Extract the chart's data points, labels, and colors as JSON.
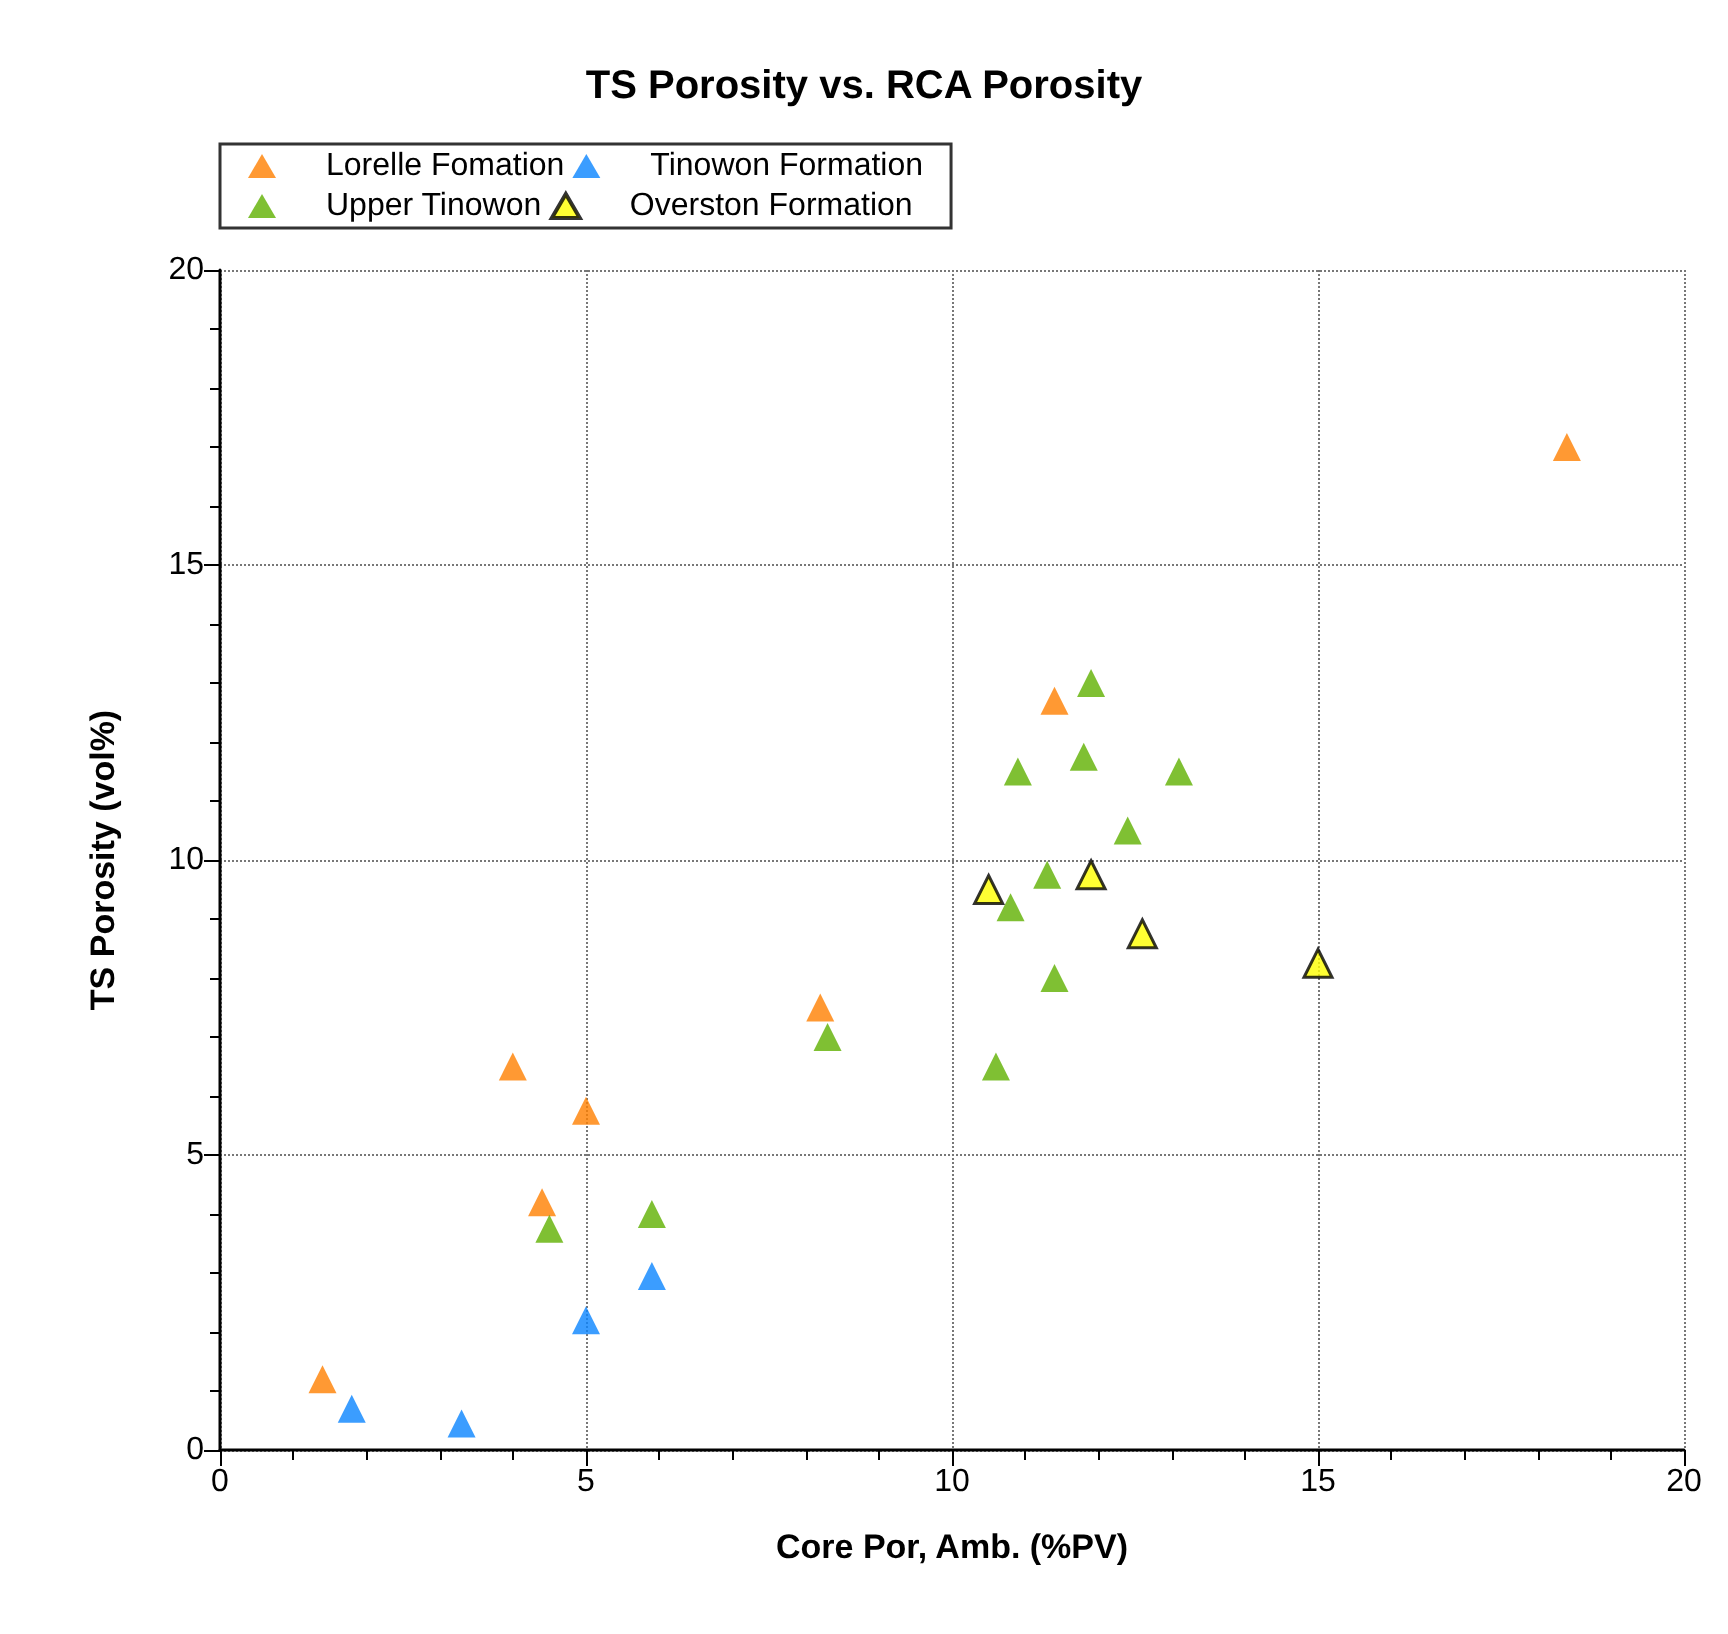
{
  "chart_data": {
    "type": "scatter",
    "title": "TS Porosity vs. RCA Porosity",
    "xlabel": "Core Por, Amb. (%PV)",
    "ylabel": "TS Porosity (vol%)",
    "xlim": [
      0,
      20
    ],
    "ylim": [
      0,
      20
    ],
    "xticks": [
      0,
      {
        "value": 1,
        "label": null
      },
      {
        "value": 2,
        "label": null
      },
      {
        "value": 3,
        "label": null
      },
      {
        "value": 4,
        "label": null
      },
      5,
      {
        "value": 6,
        "label": null
      },
      {
        "value": 7,
        "label": null
      },
      {
        "value": 8,
        "label": null
      },
      {
        "value": 9,
        "label": null
      },
      10,
      {
        "value": 11,
        "label": null
      },
      {
        "value": 12,
        "label": null
      },
      {
        "value": 13,
        "label": null
      },
      {
        "value": 14,
        "label": null
      },
      15,
      {
        "value": 16,
        "label": null
      },
      {
        "value": 17,
        "label": null
      },
      {
        "value": 18,
        "label": null
      },
      {
        "value": 19,
        "label": null
      },
      20
    ],
    "yticks": [
      0,
      {
        "value": 1,
        "label": null
      },
      {
        "value": 2,
        "label": null
      },
      {
        "value": 3,
        "label": null
      },
      {
        "value": 4,
        "label": null
      },
      5,
      {
        "value": 6,
        "label": null
      },
      {
        "value": 7,
        "label": null
      },
      {
        "value": 8,
        "label": null
      },
      {
        "value": 9,
        "label": null
      },
      10,
      {
        "value": 11,
        "label": null
      },
      {
        "value": 12,
        "label": null
      },
      {
        "value": 13,
        "label": null
      },
      {
        "value": 14,
        "label": null
      },
      15,
      {
        "value": 16,
        "label": null
      },
      {
        "value": 17,
        "label": null
      },
      {
        "value": 18,
        "label": null
      },
      {
        "value": 19,
        "label": null
      },
      20
    ],
    "grid": true,
    "legend": "top",
    "marker": "triangle",
    "series": [
      {
        "name": "Lorelle Fomation",
        "color": "#ff7f00",
        "x": [
          1.4,
          4.0,
          5.0,
          4.4,
          8.2,
          11.4,
          18.4
        ],
        "values": [
          1.2,
          6.5,
          5.75,
          4.2,
          7.5,
          12.7,
          17.0
        ]
      },
      {
        "name": "Tinowon Formation",
        "color": "#0a84ff",
        "x": [
          1.8,
          3.3,
          5.0,
          5.9
        ],
        "values": [
          0.7,
          0.45,
          2.2,
          2.95
        ]
      },
      {
        "name": "Upper Tinowon",
        "color": "#5fb000",
        "x": [
          4.5,
          5.9,
          8.3,
          10.6,
          10.8,
          11.3,
          10.9,
          11.8,
          11.9,
          12.4,
          13.1,
          11.4
        ],
        "values": [
          3.75,
          4.0,
          7.0,
          6.5,
          9.2,
          9.75,
          11.5,
          11.75,
          13.0,
          10.5,
          11.5,
          8.0
        ]
      },
      {
        "name": "Overston Formation",
        "color": "#ffff00",
        "x": [
          10.5,
          11.9,
          12.6,
          15.0
        ],
        "values": [
          9.5,
          9.75,
          8.75,
          8.25
        ]
      }
    ]
  }
}
